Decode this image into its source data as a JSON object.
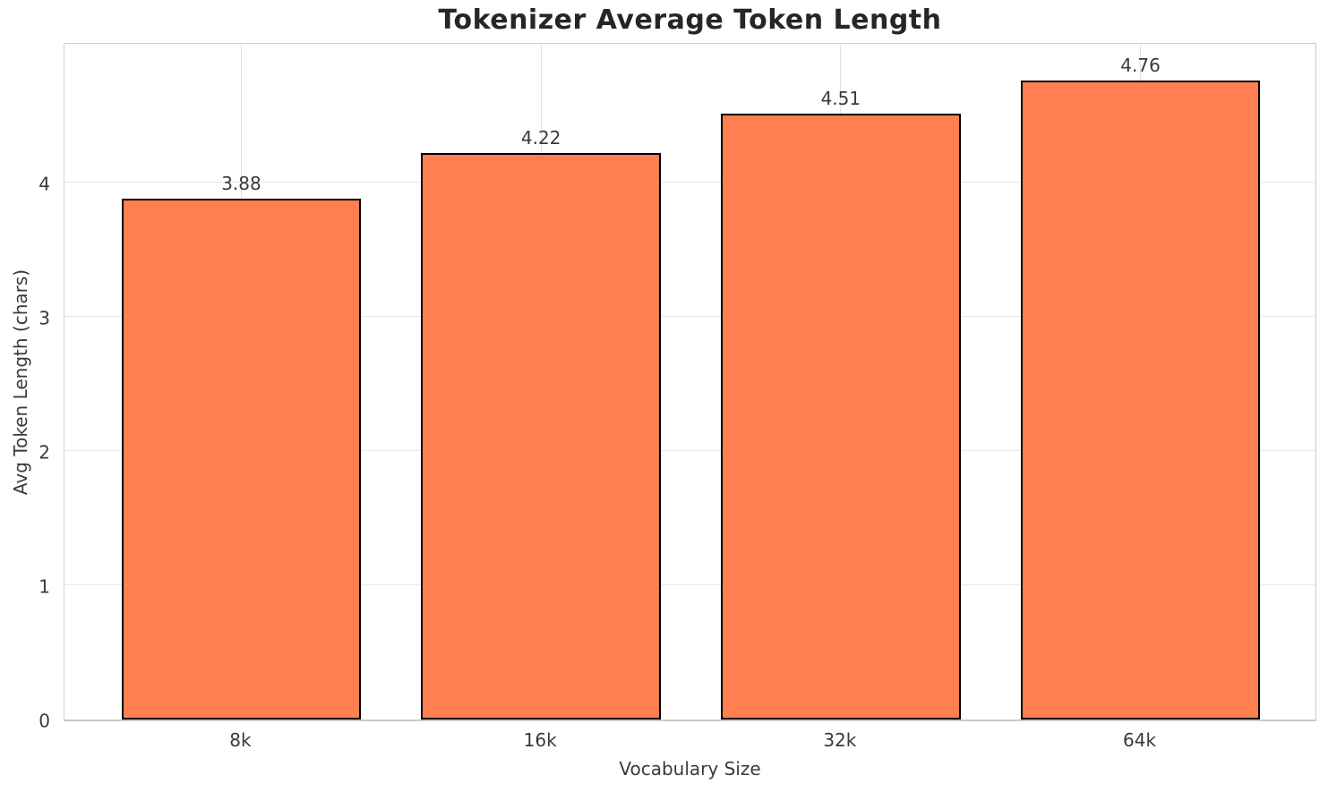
{
  "page": {
    "background": "#ffffff"
  },
  "chart_data": {
    "type": "bar",
    "title": "Tokenizer Average Token Length",
    "xlabel": "Vocabulary Size",
    "ylabel": "Avg Token Length (chars)",
    "categories": [
      "8k",
      "16k",
      "32k",
      "64k"
    ],
    "values": [
      3.88,
      4.22,
      4.51,
      4.76
    ],
    "value_labels": [
      "3.88",
      "4.22",
      "4.51",
      "4.76"
    ],
    "yticks": [
      0,
      1,
      2,
      3,
      4
    ],
    "ytick_labels": [
      "0",
      "1",
      "2",
      "3",
      "4"
    ],
    "ylim": [
      0,
      5.05
    ],
    "xlim": [
      -0.59,
      3.59
    ],
    "bar_width": 0.8,
    "grid": true,
    "legend_position": "none",
    "colors": {
      "bar_fill": "#ff7f50",
      "bar_edge": "#000000",
      "grid_horizontal": "#e7e7e7",
      "grid_vertical": "#e2e2e2",
      "axes_edge": "#cfcfcf",
      "title_text": "#262626",
      "tick_text": "#3a3a3a"
    }
  }
}
